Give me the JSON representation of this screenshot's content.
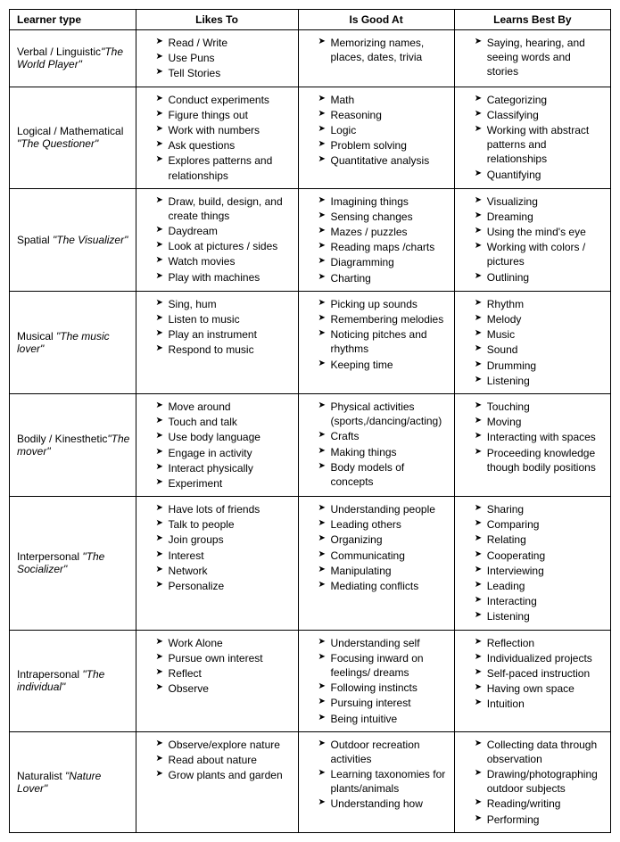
{
  "headers": [
    "Learner type",
    "Likes To",
    "Is Good At",
    "Learns Best By"
  ],
  "rows": [
    {
      "type_main": "Verbal / Linguistic",
      "type_nick": "\"The World Player\"",
      "likes": [
        "Read / Write",
        "Use Puns",
        "Tell Stories"
      ],
      "good": [
        "Memorizing names, places, dates, trivia"
      ],
      "learns": [
        "Saying, hearing, and seeing words and stories"
      ]
    },
    {
      "type_main": "Logical / Mathematical ",
      "type_nick": "\"The Questioner\"",
      "likes": [
        "Conduct experiments",
        "Figure things out",
        "Work with numbers",
        "Ask questions",
        "Explores patterns and relationships"
      ],
      "good": [
        "Math",
        "Reasoning",
        "Logic",
        "Problem solving",
        "Quantitative analysis"
      ],
      "learns": [
        "Categorizing",
        "Classifying",
        "Working with abstract patterns and relationships",
        "Quantifying"
      ]
    },
    {
      "type_main": "Spatial ",
      "type_nick": "\"The Visualizer\"",
      "likes": [
        "Draw, build, design, and create things",
        "Daydream",
        "Look at pictures / sides",
        "Watch movies",
        "Play with machines"
      ],
      "good": [
        "Imagining things",
        "Sensing changes",
        "Mazes / puzzles",
        "Reading maps /charts",
        "Diagramming",
        "Charting"
      ],
      "learns": [
        "Visualizing",
        "Dreaming",
        "Using the mind's eye",
        "Working with colors / pictures",
        "Outlining"
      ]
    },
    {
      "type_main": "Musical ",
      "type_nick": "\"The music lover\"",
      "likes": [
        "Sing, hum",
        "Listen to music",
        "Play an instrument",
        "Respond to music"
      ],
      "good": [
        "Picking up sounds",
        "Remembering melodies",
        "Noticing pitches and rhythms",
        "Keeping time"
      ],
      "learns": [
        "Rhythm",
        "Melody",
        "Music",
        "Sound",
        "Drumming",
        "Listening"
      ]
    },
    {
      "type_main": "Bodily / Kinesthetic",
      "type_nick": "\"The mover\"",
      "likes": [
        "Move around",
        "Touch and talk",
        "Use body language",
        "Engage in activity",
        "Interact physically",
        "Experiment"
      ],
      "good": [
        "Physical activities (sports,/dancing/acting)",
        "Crafts",
        "Making things",
        "Body models of concepts"
      ],
      "learns": [
        "Touching",
        "Moving",
        "Interacting with spaces",
        "Proceeding knowledge though bodily positions"
      ]
    },
    {
      "type_main": "Interpersonal ",
      "type_nick": "\"The Socializer\"",
      "likes": [
        "Have lots of friends",
        "Talk to people",
        "Join groups",
        "Interest",
        "Network",
        "Personalize"
      ],
      "good": [
        "Understanding people",
        "Leading others",
        "Organizing",
        "Communicating",
        "Manipulating",
        "Mediating conflicts"
      ],
      "learns": [
        "Sharing",
        "Comparing",
        "Relating",
        "Cooperating",
        "Interviewing",
        "Leading",
        "Interacting",
        "Listening"
      ]
    },
    {
      "type_main": "Intrapersonal ",
      "type_nick": "\"The individual\"",
      "likes": [
        "Work Alone",
        "Pursue own interest",
        "Reflect",
        "Observe"
      ],
      "good": [
        "Understanding self",
        "Focusing inward on feelings/ dreams",
        "Following instincts",
        "Pursuing interest",
        "Being intuitive"
      ],
      "learns": [
        "Reflection",
        "Individualized projects",
        "Self-paced instruction",
        "Having own space",
        "Intuition"
      ]
    },
    {
      "type_main": "Naturalist ",
      "type_nick": "\"Nature Lover\"",
      "likes": [
        "Observe/explore nature",
        "Read about nature",
        "Grow plants and garden"
      ],
      "good": [
        "Outdoor recreation activities",
        "Learning taxonomies for plants/animals",
        "Understanding how"
      ],
      "learns": [
        "Collecting data through observation",
        "Drawing/photographing outdoor subjects",
        "Reading/writing",
        "Performing"
      ]
    }
  ]
}
